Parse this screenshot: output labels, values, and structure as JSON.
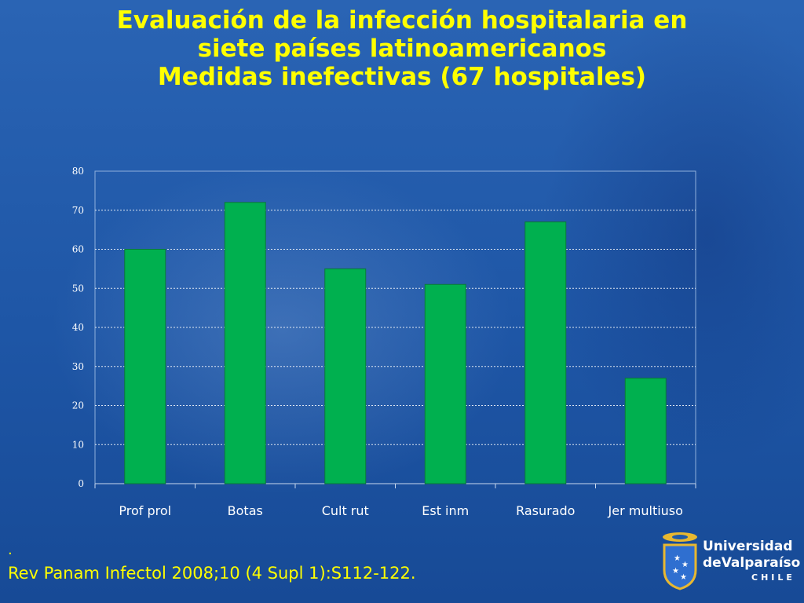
{
  "slide": {
    "title_line1": "Evaluación de la infección hospitalaria en",
    "title_line2": "siete países latinoamericanos",
    "title_line3": "Medidas inefectivas (67 hospitales)",
    "bullet": ".",
    "citation": "Rev Panam Infectol 2008;10 (4 Supl 1):S112-122."
  },
  "logo": {
    "line1": "Universidad",
    "line2": "deValparaíso",
    "line3": "CHILE",
    "icon": "university-crest-icon"
  },
  "colors": {
    "background": "#1f5aa8",
    "title": "#ffff00",
    "bar": "#00b04f",
    "bar_edge": "#0a7a38",
    "axis_text": "#ffffff"
  },
  "chart_data": {
    "type": "bar",
    "categories": [
      "Prof prol",
      "Botas",
      "Cult rut",
      "Est inm",
      "Rasurado",
      "Jer multiuso"
    ],
    "values": [
      60,
      72,
      55,
      51,
      67,
      27
    ],
    "title": "",
    "xlabel": "",
    "ylabel": "",
    "ylim": [
      0,
      80
    ],
    "yticks": [
      0,
      10,
      20,
      30,
      40,
      50,
      60,
      70,
      80
    ],
    "grid": true,
    "legend": "none"
  }
}
